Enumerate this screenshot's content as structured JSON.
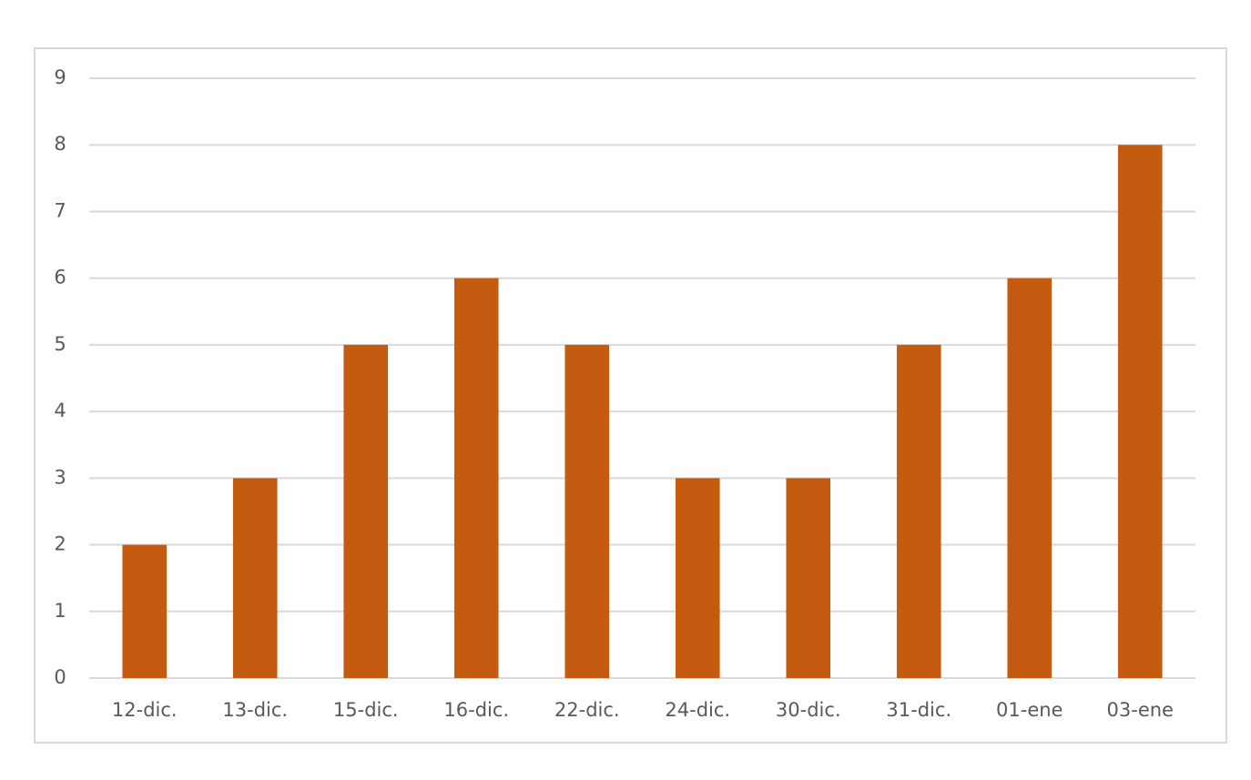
{
  "chart_data": {
    "type": "bar",
    "categories": [
      "12-dic.",
      "13-dic.",
      "15-dic.",
      "16-dic.",
      "22-dic.",
      "24-dic.",
      "30-dic.",
      "31-dic.",
      "01-ene",
      "03-ene"
    ],
    "values": [
      2,
      3,
      5,
      6,
      5,
      3,
      3,
      5,
      6,
      8
    ],
    "color": "#c55a11",
    "ylim": [
      0,
      9
    ],
    "yticks": [
      0,
      1,
      2,
      3,
      4,
      5,
      6,
      7,
      8,
      9
    ],
    "grid": true
  }
}
